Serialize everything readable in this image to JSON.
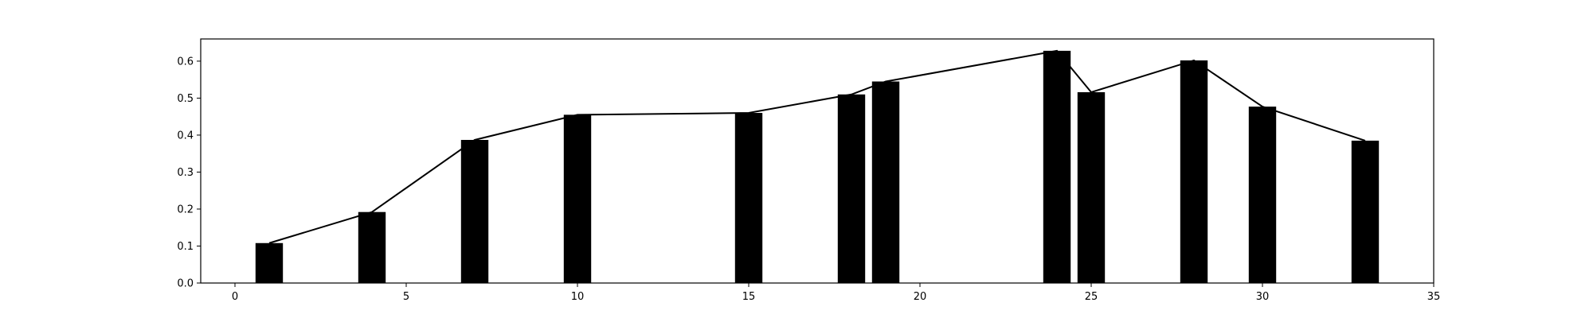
{
  "chart_data": {
    "type": "bar",
    "title": "",
    "xlabel": "",
    "ylabel": "",
    "xlim": [
      -1,
      35
    ],
    "ylim": [
      0,
      0.66
    ],
    "grid": false,
    "legend": "none",
    "x": [
      1,
      4,
      7,
      10,
      15,
      18,
      19,
      24,
      25,
      28,
      30,
      33
    ],
    "values": [
      0.108,
      0.192,
      0.387,
      0.455,
      0.46,
      0.51,
      0.545,
      0.628,
      0.516,
      0.602,
      0.477,
      0.385
    ],
    "bar_width": 0.8,
    "bar_color": "#000000",
    "line_color": "#000000",
    "overlay": "line",
    "xticks": [
      0,
      5,
      10,
      15,
      20,
      25,
      30,
      35
    ],
    "xtick_labels": [
      "0",
      "5",
      "10",
      "15",
      "20",
      "25",
      "30",
      "35"
    ],
    "yticks": [
      0.0,
      0.1,
      0.2,
      0.3,
      0.4,
      0.5,
      0.6
    ],
    "ytick_labels": [
      "0.0",
      "0.1",
      "0.2",
      "0.3",
      "0.4",
      "0.5",
      "0.6"
    ]
  }
}
